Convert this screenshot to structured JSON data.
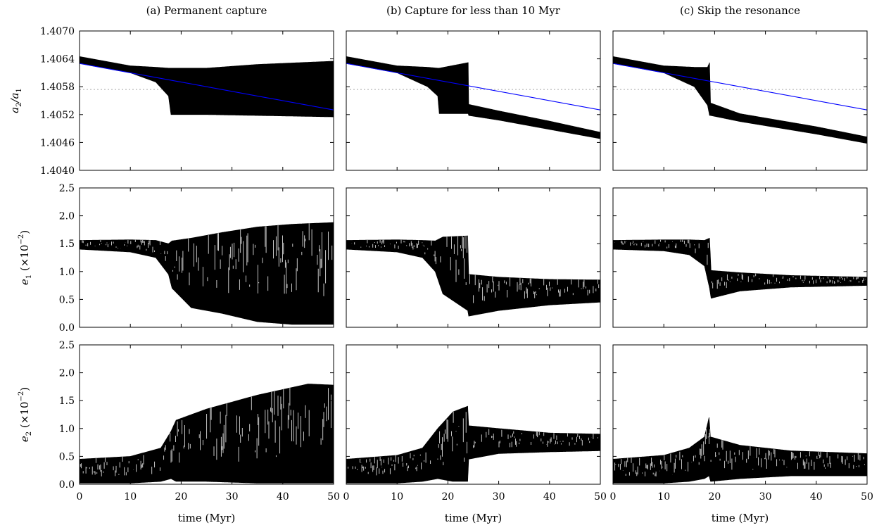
{
  "chart_data": {
    "type": "line",
    "layout": "3 rows x 3 columns, shared x-axis per column, shared y-axis per row",
    "columns": [
      {
        "id": "a",
        "title": "(a) Permanent capture"
      },
      {
        "id": "b",
        "title": "(b) Capture for less than 10 Myr"
      },
      {
        "id": "c",
        "title": "(c) Skip the resonance"
      }
    ],
    "x_axis": {
      "label": "time (Myr)",
      "range": [
        0,
        50
      ],
      "ticks": [
        "0",
        "10",
        "20",
        "30",
        "40",
        "50"
      ]
    },
    "rows": [
      {
        "id": "ratio",
        "y_range": [
          1.404,
          1.407
        ],
        "ticks": [
          "1.4040",
          "1.4046",
          "1.4052",
          "1.4058",
          "1.4064",
          "1.4070"
        ],
        "reference_line": {
          "y": 1.40574,
          "style": "dotted",
          "color": "#aaaaaa"
        }
      },
      {
        "id": "e1",
        "y_range": [
          0,
          2.5
        ],
        "ticks": [
          "0.0",
          "0.5",
          "1.0",
          "1.5",
          "2.0",
          "2.5"
        ]
      },
      {
        "id": "e2",
        "y_range": [
          0,
          2.5
        ],
        "ticks": [
          "0.0",
          "0.5",
          "1.0",
          "1.5",
          "2.0",
          "2.5"
        ]
      }
    ],
    "series": [
      {
        "panel": "a-ratio",
        "name": "oscillation band",
        "color": "#000000",
        "band": [
          {
            "x": 0,
            "lo": 1.4063,
            "hi": 1.40645
          },
          {
            "x": 10,
            "lo": 1.4061,
            "hi": 1.40625
          },
          {
            "x": 15,
            "lo": 1.4059,
            "hi": 1.40622
          },
          {
            "x": 17.5,
            "lo": 1.4056,
            "hi": 1.4062
          },
          {
            "x": 18,
            "lo": 1.4052,
            "hi": 1.4062
          },
          {
            "x": 25,
            "lo": 1.4052,
            "hi": 1.4062
          },
          {
            "x": 35,
            "lo": 1.40518,
            "hi": 1.40628
          },
          {
            "x": 50,
            "lo": 1.40515,
            "hi": 1.40635
          }
        ]
      },
      {
        "panel": "a-ratio",
        "name": "drift line",
        "color": "#0000ff",
        "points": [
          [
            0,
            1.4063
          ],
          [
            50,
            1.4053
          ]
        ]
      },
      {
        "panel": "b-ratio",
        "name": "oscillation band",
        "color": "#000000",
        "band": [
          {
            "x": 0,
            "lo": 1.4063,
            "hi": 1.40645
          },
          {
            "x": 10,
            "lo": 1.4061,
            "hi": 1.40625
          },
          {
            "x": 16,
            "lo": 1.4058,
            "hi": 1.40622
          },
          {
            "x": 18,
            "lo": 1.4056,
            "hi": 1.4062
          },
          {
            "x": 18.3,
            "lo": 1.40522,
            "hi": 1.4062
          },
          {
            "x": 24,
            "lo": 1.40522,
            "hi": 1.40632
          },
          {
            "x": 24.1,
            "lo": 1.40518,
            "hi": 1.40542
          },
          {
            "x": 30,
            "lo": 1.40508,
            "hi": 1.40528
          },
          {
            "x": 40,
            "lo": 1.40488,
            "hi": 1.40506
          },
          {
            "x": 50,
            "lo": 1.40468,
            "hi": 1.40482
          }
        ]
      },
      {
        "panel": "b-ratio",
        "name": "drift line",
        "color": "#0000ff",
        "points": [
          [
            0,
            1.4063
          ],
          [
            50,
            1.4053
          ]
        ]
      },
      {
        "panel": "c-ratio",
        "name": "oscillation band",
        "color": "#000000",
        "band": [
          {
            "x": 0,
            "lo": 1.4063,
            "hi": 1.40645
          },
          {
            "x": 10,
            "lo": 1.4061,
            "hi": 1.40625
          },
          {
            "x": 16,
            "lo": 1.4058,
            "hi": 1.40622
          },
          {
            "x": 18.6,
            "lo": 1.4054,
            "hi": 1.40622
          },
          {
            "x": 19,
            "lo": 1.40518,
            "hi": 1.40632
          },
          {
            "x": 19.2,
            "lo": 1.40518,
            "hi": 1.40545
          },
          {
            "x": 25,
            "lo": 1.40505,
            "hi": 1.40522
          },
          {
            "x": 40,
            "lo": 1.40478,
            "hi": 1.40494
          },
          {
            "x": 50,
            "lo": 1.40458,
            "hi": 1.40472
          }
        ]
      },
      {
        "panel": "c-ratio",
        "name": "drift line",
        "color": "#0000ff",
        "points": [
          [
            0,
            1.4063
          ],
          [
            50,
            1.4053
          ]
        ]
      },
      {
        "panel": "a-e1",
        "name": "oscillation band",
        "color": "#000000",
        "band": [
          {
            "x": 0,
            "lo": 1.4,
            "hi": 1.56
          },
          {
            "x": 10,
            "lo": 1.35,
            "hi": 1.57
          },
          {
            "x": 15,
            "lo": 1.25,
            "hi": 1.56
          },
          {
            "x": 17.5,
            "lo": 0.95,
            "hi": 1.5
          },
          {
            "x": 18.2,
            "lo": 0.7,
            "hi": 1.55
          },
          {
            "x": 22,
            "lo": 0.35,
            "hi": 1.6
          },
          {
            "x": 28,
            "lo": 0.25,
            "hi": 1.7
          },
          {
            "x": 35,
            "lo": 0.1,
            "hi": 1.8
          },
          {
            "x": 42,
            "lo": 0.05,
            "hi": 1.85
          },
          {
            "x": 50,
            "lo": 0.05,
            "hi": 1.88
          }
        ]
      },
      {
        "panel": "b-e1",
        "name": "oscillation band",
        "color": "#000000",
        "band": [
          {
            "x": 0,
            "lo": 1.4,
            "hi": 1.56
          },
          {
            "x": 10,
            "lo": 1.35,
            "hi": 1.57
          },
          {
            "x": 15,
            "lo": 1.25,
            "hi": 1.56
          },
          {
            "x": 17.5,
            "lo": 1.0,
            "hi": 1.55
          },
          {
            "x": 19,
            "lo": 0.6,
            "hi": 1.62
          },
          {
            "x": 23.9,
            "lo": 0.3,
            "hi": 1.64
          },
          {
            "x": 24.1,
            "lo": 0.2,
            "hi": 0.95
          },
          {
            "x": 30,
            "lo": 0.3,
            "hi": 0.9
          },
          {
            "x": 40,
            "lo": 0.4,
            "hi": 0.86
          },
          {
            "x": 50,
            "lo": 0.45,
            "hi": 0.85
          }
        ]
      },
      {
        "panel": "c-e1",
        "name": "oscillation band",
        "color": "#000000",
        "band": [
          {
            "x": 0,
            "lo": 1.4,
            "hi": 1.56
          },
          {
            "x": 10,
            "lo": 1.37,
            "hi": 1.57
          },
          {
            "x": 15,
            "lo": 1.3,
            "hi": 1.57
          },
          {
            "x": 18,
            "lo": 1.1,
            "hi": 1.56
          },
          {
            "x": 19,
            "lo": 0.7,
            "hi": 1.6
          },
          {
            "x": 19.3,
            "lo": 0.52,
            "hi": 1.02
          },
          {
            "x": 25,
            "lo": 0.65,
            "hi": 0.98
          },
          {
            "x": 35,
            "lo": 0.72,
            "hi": 0.93
          },
          {
            "x": 50,
            "lo": 0.75,
            "hi": 0.9
          }
        ]
      },
      {
        "panel": "a-e2",
        "name": "oscillation band",
        "color": "#000000",
        "band": [
          {
            "x": 0,
            "lo": 0.02,
            "hi": 0.45
          },
          {
            "x": 10,
            "lo": 0.02,
            "hi": 0.5
          },
          {
            "x": 16,
            "lo": 0.05,
            "hi": 0.65
          },
          {
            "x": 18,
            "lo": 0.1,
            "hi": 0.95
          },
          {
            "x": 19,
            "lo": 0.05,
            "hi": 1.15
          },
          {
            "x": 25,
            "lo": 0.05,
            "hi": 1.35
          },
          {
            "x": 35,
            "lo": 0.02,
            "hi": 1.6
          },
          {
            "x": 45,
            "lo": 0.02,
            "hi": 1.8
          },
          {
            "x": 50,
            "lo": 0.02,
            "hi": 1.78
          }
        ]
      },
      {
        "panel": "b-e2",
        "name": "oscillation band",
        "color": "#000000",
        "band": [
          {
            "x": 0,
            "lo": 0.02,
            "hi": 0.45
          },
          {
            "x": 10,
            "lo": 0.02,
            "hi": 0.52
          },
          {
            "x": 15,
            "lo": 0.05,
            "hi": 0.65
          },
          {
            "x": 18,
            "lo": 0.1,
            "hi": 1.0
          },
          {
            "x": 21,
            "lo": 0.05,
            "hi": 1.3
          },
          {
            "x": 23.9,
            "lo": 0.05,
            "hi": 1.4
          },
          {
            "x": 24.1,
            "lo": 0.45,
            "hi": 1.05
          },
          {
            "x": 30,
            "lo": 0.55,
            "hi": 1.0
          },
          {
            "x": 40,
            "lo": 0.58,
            "hi": 0.92
          },
          {
            "x": 50,
            "lo": 0.6,
            "hi": 0.9
          }
        ]
      },
      {
        "panel": "c-e2",
        "name": "oscillation band",
        "color": "#000000",
        "band": [
          {
            "x": 0,
            "lo": 0.02,
            "hi": 0.45
          },
          {
            "x": 10,
            "lo": 0.02,
            "hi": 0.52
          },
          {
            "x": 15,
            "lo": 0.05,
            "hi": 0.65
          },
          {
            "x": 18,
            "lo": 0.1,
            "hi": 0.85
          },
          {
            "x": 18.9,
            "lo": 0.15,
            "hi": 1.2
          },
          {
            "x": 19.2,
            "lo": 0.05,
            "hi": 0.85
          },
          {
            "x": 25,
            "lo": 0.1,
            "hi": 0.7
          },
          {
            "x": 35,
            "lo": 0.15,
            "hi": 0.6
          },
          {
            "x": 50,
            "lo": 0.15,
            "hi": 0.55
          }
        ]
      }
    ]
  }
}
